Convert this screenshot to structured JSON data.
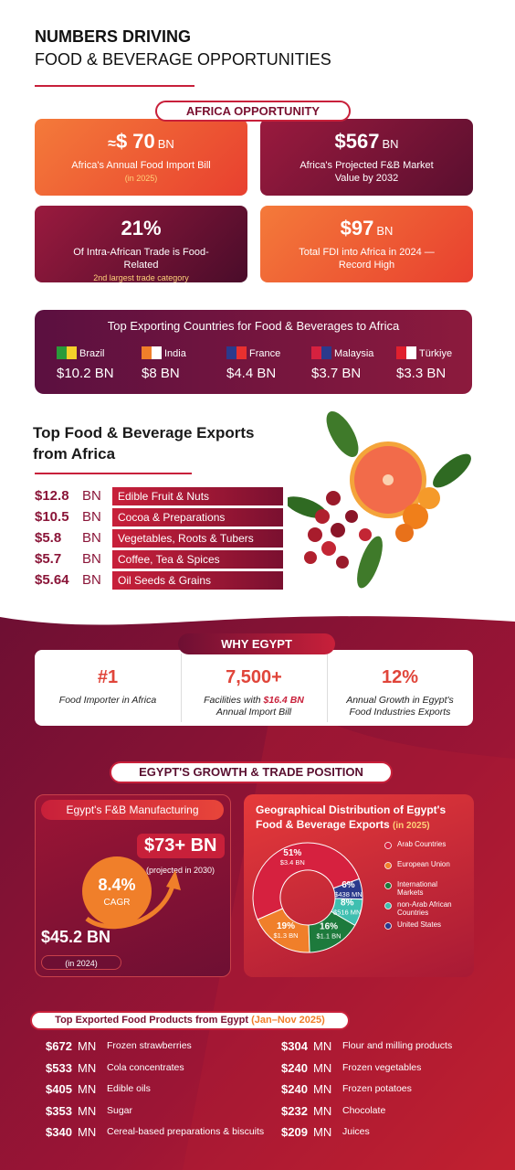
{
  "header": {
    "title": "NUMBERS DRIVING",
    "subtitle": "FOOD & BEVERAGE OPPORTUNITIES"
  },
  "africa": {
    "label": "AFRICA OPPORTUNITY",
    "cards": [
      {
        "prefix": "≈",
        "value": "$ 70",
        "unit": "BN",
        "text": "Africa's Annual Food Import Bill",
        "note": "(in 2025)"
      },
      {
        "value": "$567",
        "unit": "BN",
        "text": "Africa's Projected F&B Market Value by 2032"
      },
      {
        "value": "21%",
        "text": "Of Intra-African Trade is Food-Related",
        "note": "2nd largest trade category"
      },
      {
        "value": "$97",
        "unit": "BN",
        "text": "Total FDI into Africa in 2024 — Record High"
      }
    ]
  },
  "exporters": {
    "title": "Top Exporting Countries for Food & Beverages to Africa",
    "countries": [
      {
        "name": "Brazil",
        "value": "$10.2",
        "unit": "BN"
      },
      {
        "name": "India",
        "value": "$8",
        "unit": "BN"
      },
      {
        "name": "France",
        "value": "$4.4",
        "unit": "BN"
      },
      {
        "name": "Malaysia",
        "value": "$3.7",
        "unit": "BN"
      },
      {
        "name": "Türkiye",
        "value": "$3.3",
        "unit": "BN"
      }
    ]
  },
  "africa_exports": {
    "title": "Top Food & Beverage Exports from Africa",
    "items": [
      {
        "value": "$12.8",
        "unit": "BN",
        "label": "Edible Fruit & Nuts"
      },
      {
        "value": "$10.5",
        "unit": "BN",
        "label": "Cocoa & Preparations"
      },
      {
        "value": "$5.8",
        "unit": "BN",
        "label": "Vegetables, Roots & Tubers"
      },
      {
        "value": "$5.7",
        "unit": "BN",
        "label": "Coffee, Tea & Spices"
      },
      {
        "value": "$5.64",
        "unit": "BN",
        "label": "Oil Seeds & Grains"
      }
    ]
  },
  "why_egypt": {
    "label": "WHY EGYPT",
    "items": [
      {
        "value": "#1",
        "text": "Food Importer in Africa"
      },
      {
        "value": "7,500+",
        "text": "Facilities with",
        "highlight": "$16.4 BN",
        "text_after": "Annual Import Bill"
      },
      {
        "value": "12%",
        "text": "Annual Growth in Egypt's Food Industries Exports"
      }
    ]
  },
  "growth": {
    "label": "EGYPT'S GROWTH & TRADE POSITION"
  },
  "manufacturing": {
    "title": "Egypt's F&B Manufacturing",
    "projected": "$73+ BN",
    "projected_note": "(projected in 2030)",
    "cagr": "8.4%",
    "cagr_label": "CAGR",
    "base": "$45.2 BN",
    "base_note": "(in 2024)"
  },
  "chart_data": {
    "type": "pie",
    "title": "Geographical Distribution of Egypt's Food & Beverage Exports",
    "subtitle": "(in 2025)",
    "categories": [
      "Arab Countries",
      "European Union",
      "International Markets",
      "non-Arab African Countries",
      "United States"
    ],
    "values": [
      51,
      19,
      16,
      8,
      6
    ],
    "value_labels": [
      "51%",
      "19%",
      "16%",
      "8%",
      "6%"
    ],
    "amount_labels": [
      "$3.4 BN",
      "$1.3 BN",
      "$1.1 BN",
      "$516 MN",
      "$438 MN"
    ],
    "colors": [
      "#d6213f",
      "#f07f2a",
      "#1d7a3c",
      "#3fbfb0",
      "#2b3a8c"
    ]
  },
  "egypt_products": {
    "title": "Top Exported Food Products from Egypt",
    "title_note": "(Jan–Nov 2025)",
    "items": [
      {
        "value": "$672",
        "unit": "MN",
        "label": "Frozen strawberries"
      },
      {
        "value": "$533",
        "unit": "MN",
        "label": "Cola concentrates"
      },
      {
        "value": "$405",
        "unit": "MN",
        "label": "Edible oils"
      },
      {
        "value": "$353",
        "unit": "MN",
        "label": "Sugar"
      },
      {
        "value": "$340",
        "unit": "MN",
        "label": "Cereal-based preparations & biscuits"
      },
      {
        "value": "$304",
        "unit": "MN",
        "label": "Flour and milling products"
      },
      {
        "value": "$240",
        "unit": "MN",
        "label": "Frozen vegetables"
      },
      {
        "value": "$240",
        "unit": "MN",
        "label": "Frozen potatoes"
      },
      {
        "value": "$232",
        "unit": "MN",
        "label": "Chocolate"
      },
      {
        "value": "$209",
        "unit": "MN",
        "label": "Juices"
      }
    ]
  }
}
